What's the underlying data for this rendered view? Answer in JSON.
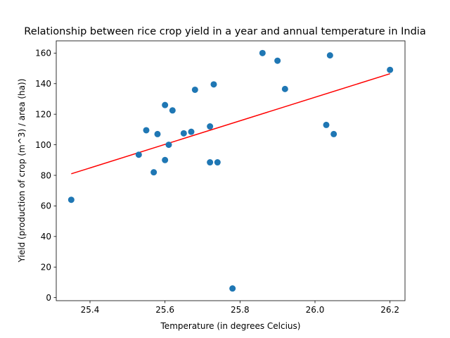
{
  "chart_data": {
    "type": "scatter",
    "title": "Relationship between rice crop yield in a year and annual temperature in India",
    "xlabel": "Temperature (in degrees Celcius)",
    "ylabel": "Yield (production of crop (m^3) / area (ha))",
    "xlim": [
      25.31,
      26.24
    ],
    "ylim": [
      -2,
      168
    ],
    "xticks": [
      "25.4",
      "25.6",
      "25.8",
      "26.0",
      "26.2"
    ],
    "yticks": [
      "0",
      "20",
      "40",
      "60",
      "80",
      "100",
      "120",
      "140",
      "160"
    ],
    "grid": false,
    "series": [
      {
        "color": "#1f77b4",
        "points": [
          [
            25.35,
            64
          ],
          [
            25.53,
            93.5
          ],
          [
            25.55,
            109.5
          ],
          [
            25.57,
            82
          ],
          [
            25.58,
            107
          ],
          [
            25.6,
            126
          ],
          [
            25.6,
            90
          ],
          [
            25.61,
            100
          ],
          [
            25.62,
            122.5
          ],
          [
            25.65,
            107.5
          ],
          [
            25.67,
            108.5
          ],
          [
            25.68,
            136
          ],
          [
            25.72,
            112
          ],
          [
            25.72,
            88.5
          ],
          [
            25.73,
            139.5
          ],
          [
            25.74,
            88.5
          ],
          [
            25.78,
            6
          ],
          [
            25.86,
            160
          ],
          [
            25.9,
            155
          ],
          [
            25.92,
            136.5
          ],
          [
            26.03,
            113
          ],
          [
            26.04,
            158.5
          ],
          [
            26.05,
            107
          ],
          [
            26.2,
            149
          ]
        ]
      }
    ],
    "trendline": {
      "color": "#ff0000",
      "points": [
        [
          25.35,
          81
        ],
        [
          26.2,
          146.5
        ]
      ]
    }
  }
}
